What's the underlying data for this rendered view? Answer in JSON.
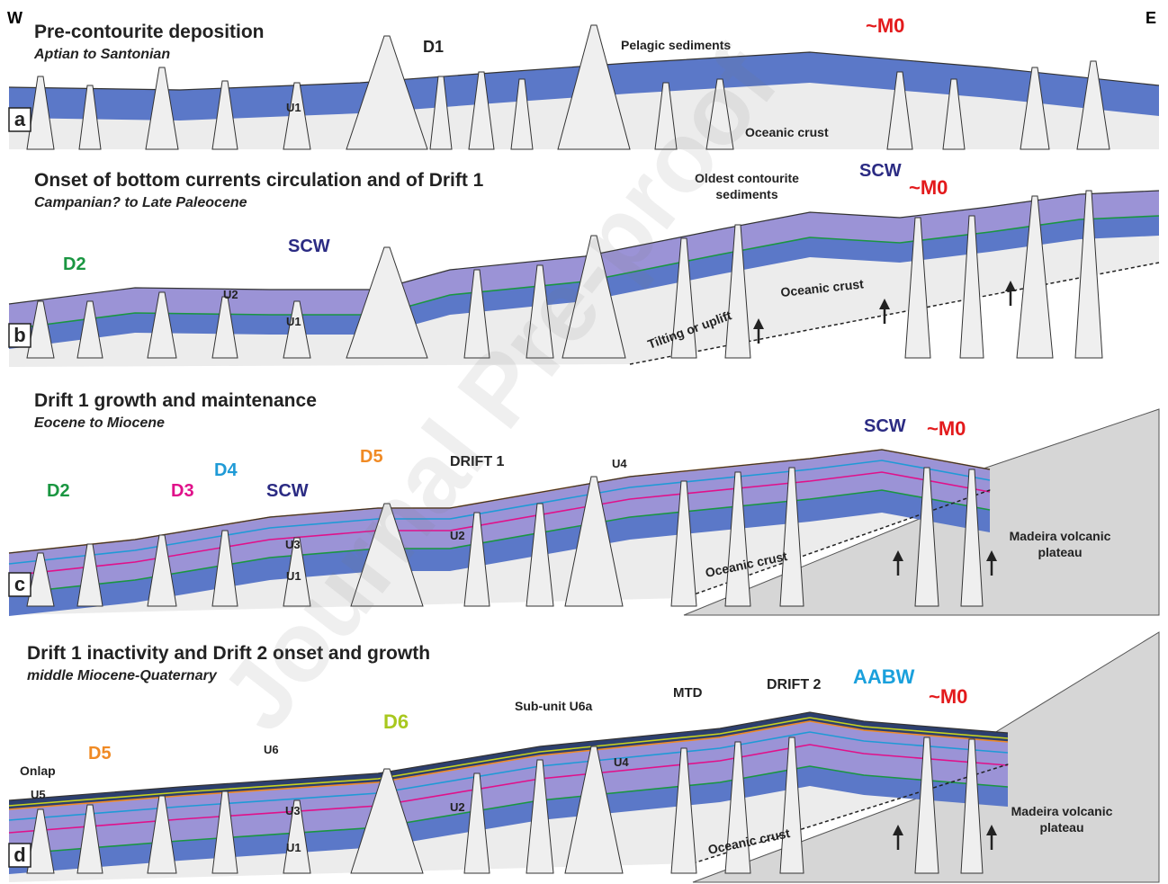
{
  "corners": {
    "west": "W",
    "east": "E"
  },
  "watermark": "Journal Pre-proof",
  "panels": [
    {
      "letter": "a",
      "title": "Pre-contourite deposition",
      "subtitle": "Aptian to Santonian",
      "labels": [
        "D1",
        "Pelagic sediments",
        "~M0",
        "U1",
        "Oceanic crust"
      ]
    },
    {
      "letter": "b",
      "title": "Onset of bottom currents circulation and of Drift 1",
      "subtitle": "Campanian? to Late Paleocene",
      "labels": [
        "D2",
        "SCW",
        "U2",
        "U1",
        [
          "Oldest contourite",
          "sediments"
        ],
        "SCW",
        "~M0",
        "Oceanic crust",
        "Tilting or uplift"
      ]
    },
    {
      "letter": "c",
      "title": "Drift 1 growth and maintenance",
      "subtitle": "Eocene to Miocene",
      "labels": [
        "D2",
        "D3",
        "D4",
        "SCW",
        "D5",
        "DRIFT 1",
        "U4",
        "U2",
        "U3",
        "U1",
        "SCW",
        "~M0",
        "Oceanic crust",
        [
          "Madeira volcanic",
          "plateau"
        ]
      ]
    },
    {
      "letter": "d",
      "title": "Drift 1 inactivity and Drift 2 onset and growth",
      "subtitle": "middle Miocene-Quaternary",
      "labels": [
        "Onlap",
        "D5",
        "U5",
        "U6",
        "U3",
        "U1",
        "D6",
        "U2",
        "Sub-unit U6a",
        "U4",
        "MTD",
        "DRIFT 2",
        "AABW",
        "~M0",
        "Oceanic crust",
        [
          "Madeira volcanic",
          "plateau"
        ]
      ]
    }
  ]
}
